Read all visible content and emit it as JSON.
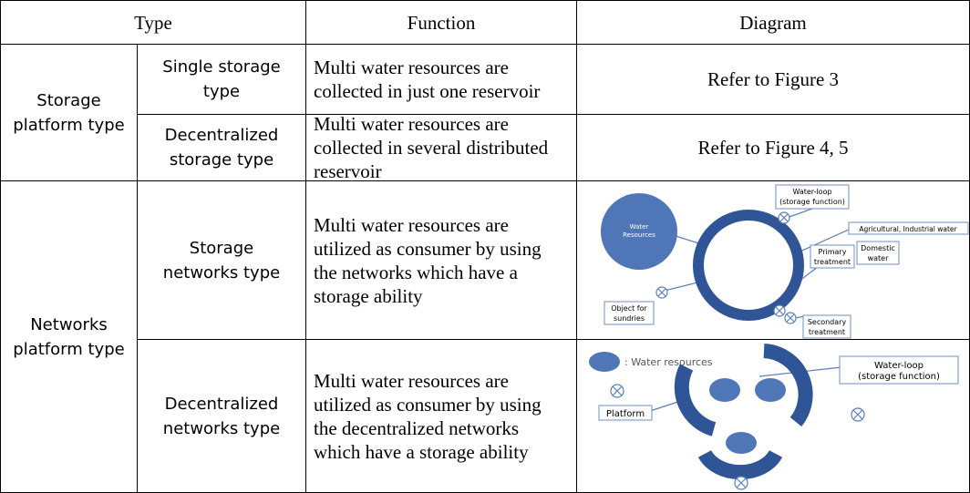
{
  "table": {
    "header": [
      "Type",
      "Function",
      "Diagram"
    ],
    "groups": [
      {
        "label": "Storage platform type",
        "rows": [
          {
            "subtype": "Single storage type",
            "function": "Multi water resources are collected in just one reservoir",
            "diagram": "Refer to Figure 3"
          },
          {
            "subtype": "Decentralized storage type",
            "function": "Multi water resources are collected in several distributed reservoir",
            "diagram": "Refer to Figure 4, 5"
          }
        ]
      },
      {
        "label": "Networks platform type",
        "rows": [
          {
            "subtype": "Storage networks type",
            "function": "Multi water resources are utilized as consumer by using the networks which have a storage ability"
          },
          {
            "subtype": "Decentralized networks type",
            "function": "Multi water resources are utilized as consumer by using the decentralized networks which have a storage ability"
          }
        ]
      }
    ]
  },
  "diagrams": {
    "storage_networks": {
      "water_resources": [
        "Water",
        "Resources"
      ],
      "water_loop": [
        "Water-loop",
        "(storage function)"
      ],
      "agricultural": "Agricultural, Industrial water",
      "primary": [
        "Primary",
        "treatment"
      ],
      "domestic": [
        "Domestic",
        "water"
      ],
      "secondary": [
        "Secondary",
        "treatment"
      ],
      "sundries": [
        "Object for",
        "sundries"
      ]
    },
    "decentralized_networks": {
      "legend": ": Water resources",
      "platform": "Platform",
      "water_loop": [
        "Water-loop",
        "(storage function)"
      ]
    }
  }
}
